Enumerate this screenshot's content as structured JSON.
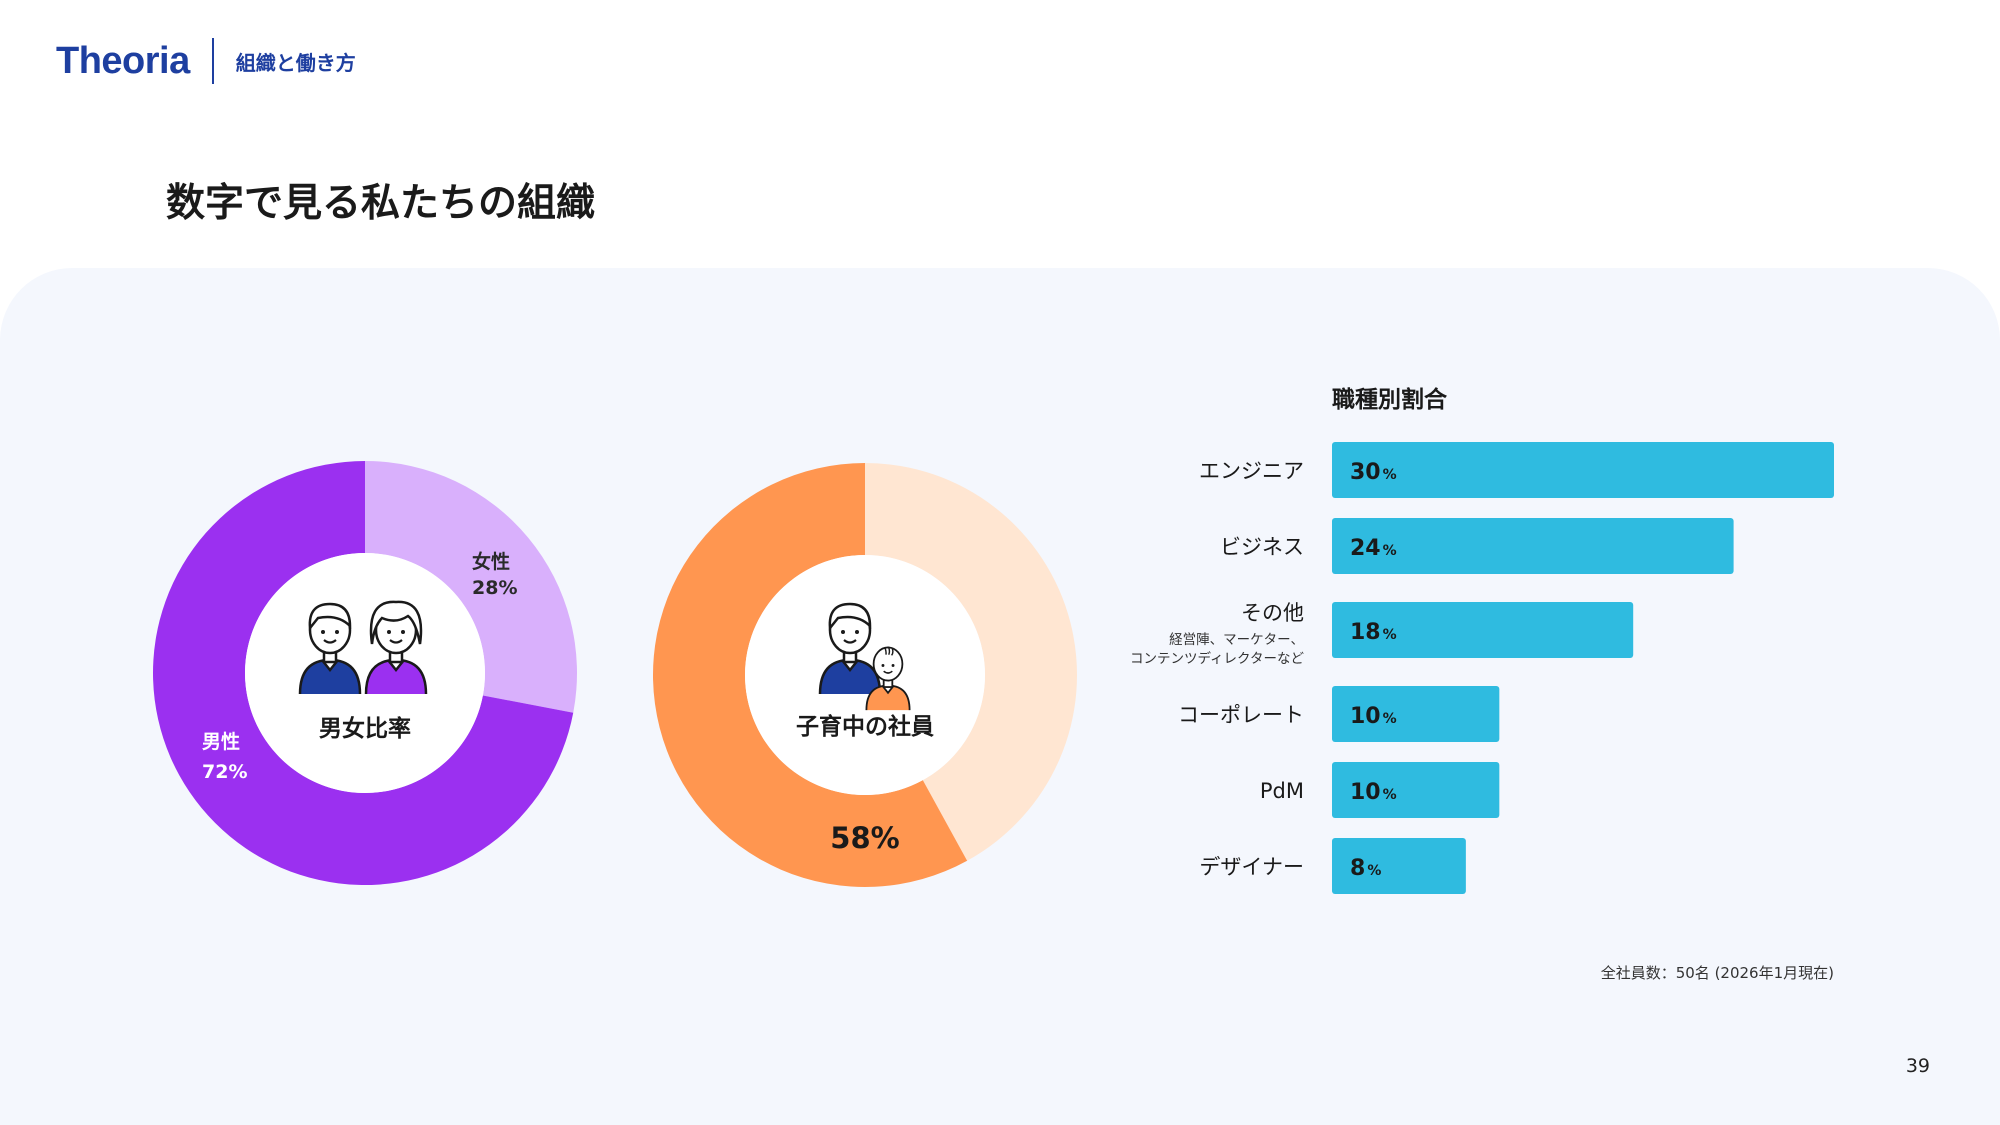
{
  "header": {
    "logo": "Theoria",
    "section": "組織と働き方"
  },
  "page_title": "数字で見る私たちの組織",
  "colors": {
    "brand": "#1e3fa0",
    "male": "#9b30f0",
    "female": "#d9b0fc",
    "parent": "#ff9650",
    "non_parent": "#ffe6d2",
    "bar": "#2fbbe0",
    "panel": "#f4f7fd"
  },
  "chart_data": [
    {
      "type": "pie",
      "title": "男女比率",
      "slices": [
        {
          "label": "女性",
          "value": 28,
          "value_label": "28%"
        },
        {
          "label": "男性",
          "value": 72,
          "value_label": "72%"
        }
      ],
      "center_icon": "man-and-woman-icon"
    },
    {
      "type": "pie",
      "title": "子育中の社員",
      "slices": [
        {
          "label": "",
          "value": 42
        },
        {
          "label": "",
          "value": 58,
          "value_label": "58%"
        }
      ],
      "center_icon": "parent-and-child-icon"
    },
    {
      "type": "bar",
      "orientation": "horizontal",
      "title": "職種別割合",
      "categories": [
        "エンジニア",
        "ビジネス",
        "その他",
        "コーポレート",
        "PdM",
        "デザイナー"
      ],
      "category_notes": [
        "",
        "",
        "経営陣、マーケター、\nコンテンツディレクターなど",
        "",
        "",
        ""
      ],
      "values": [
        30,
        24,
        18,
        10,
        10,
        8
      ],
      "value_unit": "%",
      "xlim": [
        0,
        30
      ],
      "grid": false
    }
  ],
  "footnote": "全社員数：50名 (2026年1月現在)",
  "page_number": "39"
}
